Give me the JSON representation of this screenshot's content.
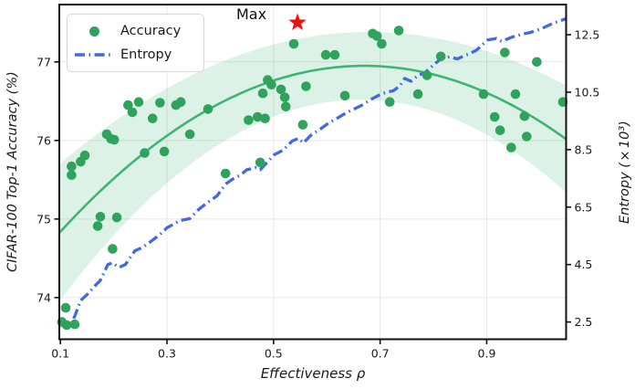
{
  "chart_data": {
    "type": "scatter",
    "title": "",
    "xlabel": "Effectiveness ρ",
    "ylabel_left": "CIFAR-100 Top-1 Accuracy (%)",
    "ylabel_right": "Entropy (×10³)",
    "xlim": [
      0.098,
      1.049
    ],
    "ylim_left": [
      73.47,
      77.73
    ],
    "ylim_right": [
      1.9,
      13.55
    ],
    "x_ticks": [
      "0.1",
      "0.3",
      "0.5",
      "0.7",
      "0.9"
    ],
    "y_ticks_left": [
      "74",
      "75",
      "76",
      "77"
    ],
    "y_ticks_right": [
      "2.5",
      "4.5",
      "6.5",
      "8.5",
      "10.5",
      "12.5"
    ],
    "grid": true,
    "legend": {
      "position": "upper left",
      "entries": [
        {
          "label": "Accuracy",
          "marker": "dot"
        },
        {
          "label": "Entropy",
          "marker": "dash-dot-line"
        }
      ]
    },
    "annotation": {
      "label": "Max",
      "star": {
        "x": 0.545,
        "y": 77.5
      }
    },
    "series": [
      {
        "name": "Accuracy",
        "axis": "left",
        "style": "scatter"
      },
      {
        "name": "Accuracy trend",
        "axis": "left",
        "style": "quadratic-fit-with-band"
      },
      {
        "name": "Entropy",
        "axis": "right",
        "style": "dash-dot-line"
      }
    ],
    "trend": {
      "shape": "quadratic",
      "a": -6.5,
      "h": 0.67,
      "k": 76.95
    },
    "band": {
      "base": 0.43,
      "spread": 1.5,
      "center": 0.64
    },
    "accuracy_points": [
      [
        0.103,
        73.69
      ],
      [
        0.112,
        73.65
      ],
      [
        0.127,
        73.66
      ],
      [
        0.11,
        73.87
      ],
      [
        0.17,
        74.91
      ],
      [
        0.175,
        75.03
      ],
      [
        0.198,
        74.62
      ],
      [
        0.206,
        75.02
      ],
      [
        0.121,
        75.67
      ],
      [
        0.138,
        75.73
      ],
      [
        0.146,
        75.81
      ],
      [
        0.121,
        75.56
      ],
      [
        0.187,
        76.08
      ],
      [
        0.195,
        76.02
      ],
      [
        0.201,
        76.01
      ],
      [
        0.227,
        76.45
      ],
      [
        0.235,
        76.36
      ],
      [
        0.247,
        76.49
      ],
      [
        0.258,
        75.84
      ],
      [
        0.273,
        76.28
      ],
      [
        0.287,
        76.48
      ],
      [
        0.295,
        75.86
      ],
      [
        0.317,
        76.45
      ],
      [
        0.326,
        76.49
      ],
      [
        0.343,
        76.08
      ],
      [
        0.377,
        76.4
      ],
      [
        0.41,
        75.58
      ],
      [
        0.453,
        76.26
      ],
      [
        0.47,
        76.3
      ],
      [
        0.475,
        75.72
      ],
      [
        0.48,
        76.6
      ],
      [
        0.484,
        76.28
      ],
      [
        0.489,
        76.77
      ],
      [
        0.496,
        76.71
      ],
      [
        0.514,
        76.65
      ],
      [
        0.521,
        76.55
      ],
      [
        0.523,
        76.43
      ],
      [
        0.538,
        77.23
      ],
      [
        0.555,
        76.2
      ],
      [
        0.561,
        76.69
      ],
      [
        0.598,
        77.09
      ],
      [
        0.615,
        77.09
      ],
      [
        0.634,
        76.57
      ],
      [
        0.686,
        77.36
      ],
      [
        0.694,
        77.33
      ],
      [
        0.703,
        77.23
      ],
      [
        0.718,
        76.49
      ],
      [
        0.735,
        77.4
      ],
      [
        0.771,
        76.59
      ],
      [
        0.788,
        76.83
      ],
      [
        0.814,
        77.07
      ],
      [
        0.894,
        76.59
      ],
      [
        0.915,
        76.3
      ],
      [
        0.925,
        76.13
      ],
      [
        0.934,
        77.12
      ],
      [
        0.946,
        75.91
      ],
      [
        0.954,
        76.59
      ],
      [
        0.971,
        76.31
      ],
      [
        0.975,
        76.05
      ],
      [
        0.994,
        77.0
      ],
      [
        1.043,
        76.49
      ]
    ],
    "entropy_line": [
      [
        0.098,
        2.45
      ],
      [
        0.105,
        2.36
      ],
      [
        0.113,
        2.33
      ],
      [
        0.12,
        2.42
      ],
      [
        0.128,
        2.75
      ],
      [
        0.138,
        3.25
      ],
      [
        0.15,
        3.45
      ],
      [
        0.163,
        3.72
      ],
      [
        0.175,
        3.95
      ],
      [
        0.189,
        4.5
      ],
      [
        0.198,
        4.56
      ],
      [
        0.21,
        4.4
      ],
      [
        0.222,
        4.5
      ],
      [
        0.24,
        4.98
      ],
      [
        0.252,
        5.08
      ],
      [
        0.266,
        5.25
      ],
      [
        0.278,
        5.42
      ],
      [
        0.29,
        5.6
      ],
      [
        0.3,
        5.78
      ],
      [
        0.312,
        5.9
      ],
      [
        0.324,
        6.03
      ],
      [
        0.343,
        6.1
      ],
      [
        0.359,
        6.41
      ],
      [
        0.377,
        6.67
      ],
      [
        0.394,
        6.89
      ],
      [
        0.41,
        7.3
      ],
      [
        0.422,
        7.46
      ],
      [
        0.438,
        7.62
      ],
      [
        0.45,
        7.8
      ],
      [
        0.466,
        7.87
      ],
      [
        0.475,
        7.8
      ],
      [
        0.49,
        8.1
      ],
      [
        0.501,
        8.32
      ],
      [
        0.518,
        8.48
      ],
      [
        0.535,
        8.8
      ],
      [
        0.547,
        8.89
      ],
      [
        0.556,
        8.73
      ],
      [
        0.57,
        9.0
      ],
      [
        0.585,
        9.18
      ],
      [
        0.603,
        9.42
      ],
      [
        0.62,
        9.6
      ],
      [
        0.638,
        9.8
      ],
      [
        0.655,
        9.95
      ],
      [
        0.667,
        10.06
      ],
      [
        0.683,
        10.25
      ],
      [
        0.7,
        10.42
      ],
      [
        0.712,
        10.5
      ],
      [
        0.725,
        10.55
      ],
      [
        0.737,
        10.72
      ],
      [
        0.746,
        10.98
      ],
      [
        0.758,
        10.88
      ],
      [
        0.772,
        11.1
      ],
      [
        0.783,
        11.16
      ],
      [
        0.8,
        11.45
      ],
      [
        0.812,
        11.63
      ],
      [
        0.83,
        11.73
      ],
      [
        0.845,
        11.66
      ],
      [
        0.862,
        11.8
      ],
      [
        0.88,
        11.95
      ],
      [
        0.902,
        12.32
      ],
      [
        0.918,
        12.37
      ],
      [
        0.928,
        12.27
      ],
      [
        0.948,
        12.42
      ],
      [
        0.967,
        12.52
      ],
      [
        0.982,
        12.58
      ],
      [
        0.995,
        12.66
      ],
      [
        1.008,
        12.76
      ],
      [
        1.025,
        12.9
      ],
      [
        1.048,
        13.05
      ]
    ],
    "colors": {
      "accuracy": "#2fa35c",
      "trend": "#3db574",
      "band": "rgba(61,181,116,0.18)",
      "entropy": "#4169e1",
      "star": "#ed1111",
      "grid": "#e7e7e7",
      "spine": "#111111",
      "text": "#1a1a1a"
    }
  }
}
